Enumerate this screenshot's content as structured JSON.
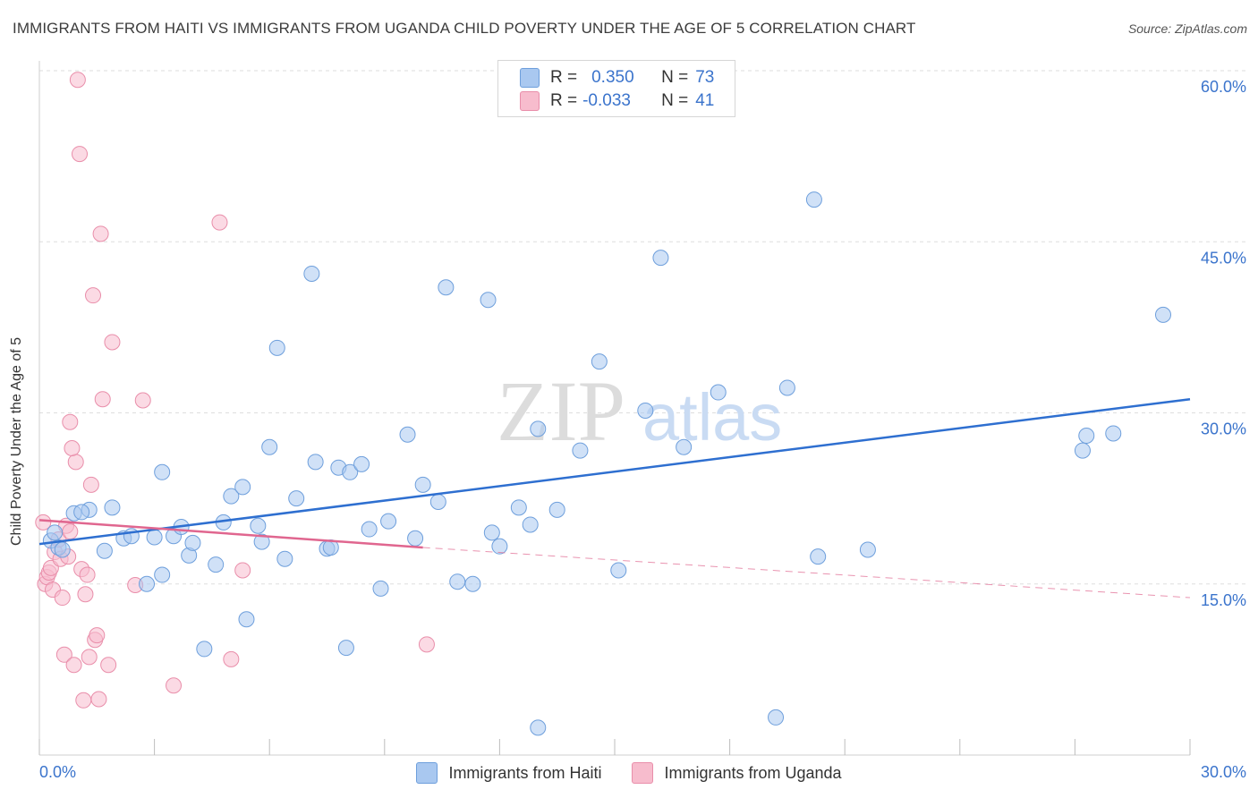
{
  "header": {
    "title": "IMMIGRANTS FROM HAITI VS IMMIGRANTS FROM UGANDA CHILD POVERTY UNDER THE AGE OF 5 CORRELATION CHART",
    "source": "Source: ZipAtlas.com"
  },
  "watermark": {
    "zip": "ZIP",
    "atlas": "atlas"
  },
  "legend": {
    "rows": [
      {
        "r_label": "R =",
        "r_value": "0.350",
        "n_label": "N =",
        "n_value": "73",
        "color": "#a9c8f0"
      },
      {
        "r_label": "R =",
        "r_value": "-0.033",
        "n_label": "N =",
        "n_value": "41",
        "color": "#f7bccd"
      }
    ]
  },
  "bottom_legend": {
    "haiti": "Immigrants from Haiti",
    "uganda": "Immigrants from Uganda"
  },
  "colors": {
    "haiti_fill": "#a9c8f0",
    "haiti_stroke": "#6e9fdc",
    "haiti_line": "#2e6fd0",
    "uganda_fill": "#f7bccd",
    "uganda_stroke": "#e98eaa",
    "uganda_line": "#e0668f",
    "axis_text": "#3b74cc"
  },
  "chart_data": {
    "type": "scatter",
    "title": "IMMIGRANTS FROM HAITI VS IMMIGRANTS FROM UGANDA CHILD POVERTY UNDER THE AGE OF 5 CORRELATION CHART",
    "xlabel": "",
    "ylabel": "Child Poverty Under the Age of 5",
    "xlim": [
      0,
      30
    ],
    "ylim": [
      0,
      60
    ],
    "x_tick_labels": [
      "0.0%",
      "30.0%"
    ],
    "y_ticks": [
      15,
      30,
      45,
      60
    ],
    "y_tick_labels": [
      "15.0%",
      "30.0%",
      "45.0%",
      "60.0%"
    ],
    "grid": true,
    "legend_position": "top-center",
    "series": [
      {
        "name": "Immigrants from Haiti",
        "R": 0.35,
        "N": 73,
        "trend": {
          "x": [
            0,
            30
          ],
          "y": [
            18.5,
            31.2
          ]
        },
        "points": [
          [
            0.3,
            18.8
          ],
          [
            0.4,
            19.5
          ],
          [
            0.5,
            18.2
          ],
          [
            0.6,
            18.0
          ],
          [
            0.9,
            21.2
          ],
          [
            1.3,
            21.5
          ],
          [
            1.1,
            21.3
          ],
          [
            1.9,
            21.7
          ],
          [
            1.7,
            17.9
          ],
          [
            2.2,
            19.0
          ],
          [
            2.4,
            19.2
          ],
          [
            2.8,
            15.0
          ],
          [
            3.0,
            19.1
          ],
          [
            3.2,
            15.8
          ],
          [
            3.2,
            24.8
          ],
          [
            3.5,
            19.2
          ],
          [
            3.7,
            20.0
          ],
          [
            3.9,
            17.5
          ],
          [
            4.0,
            18.6
          ],
          [
            4.3,
            9.3
          ],
          [
            4.6,
            16.7
          ],
          [
            4.8,
            20.4
          ],
          [
            5.0,
            22.7
          ],
          [
            5.3,
            23.5
          ],
          [
            5.4,
            11.9
          ],
          [
            5.7,
            20.1
          ],
          [
            5.8,
            18.7
          ],
          [
            6.0,
            27.0
          ],
          [
            6.2,
            35.7
          ],
          [
            6.4,
            17.2
          ],
          [
            6.7,
            22.5
          ],
          [
            7.1,
            42.2
          ],
          [
            7.2,
            25.7
          ],
          [
            7.5,
            18.1
          ],
          [
            7.6,
            18.2
          ],
          [
            7.8,
            25.2
          ],
          [
            8.0,
            9.4
          ],
          [
            8.1,
            24.8
          ],
          [
            8.4,
            25.5
          ],
          [
            8.6,
            19.8
          ],
          [
            8.9,
            14.6
          ],
          [
            9.1,
            20.5
          ],
          [
            9.6,
            28.1
          ],
          [
            9.8,
            19.0
          ],
          [
            10.0,
            23.7
          ],
          [
            10.4,
            22.2
          ],
          [
            10.6,
            41.0
          ],
          [
            10.9,
            15.2
          ],
          [
            11.3,
            15.0
          ],
          [
            11.7,
            39.9
          ],
          [
            11.8,
            19.5
          ],
          [
            12.0,
            18.3
          ],
          [
            12.5,
            21.7
          ],
          [
            12.8,
            20.2
          ],
          [
            13.0,
            2.4
          ],
          [
            13.0,
            28.6
          ],
          [
            13.5,
            21.5
          ],
          [
            14.1,
            26.7
          ],
          [
            14.6,
            34.5
          ],
          [
            15.1,
            16.2
          ],
          [
            15.8,
            30.2
          ],
          [
            16.2,
            43.6
          ],
          [
            16.8,
            27.0
          ],
          [
            17.7,
            31.8
          ],
          [
            19.2,
            3.3
          ],
          [
            19.5,
            32.2
          ],
          [
            20.2,
            48.7
          ],
          [
            20.3,
            17.4
          ],
          [
            21.6,
            18.0
          ],
          [
            27.2,
            26.7
          ],
          [
            27.3,
            28.0
          ],
          [
            28.0,
            28.2
          ],
          [
            29.3,
            38.6
          ]
        ]
      },
      {
        "name": "Immigrants from Uganda",
        "R": -0.033,
        "N": 41,
        "trend": {
          "x": [
            0,
            10
          ],
          "y": [
            20.6,
            18.2
          ]
        },
        "trend_dashed": {
          "x": [
            10,
            30
          ],
          "y": [
            18.2,
            13.8
          ]
        },
        "points": [
          [
            0.1,
            20.4
          ],
          [
            0.15,
            15.0
          ],
          [
            0.2,
            15.6
          ],
          [
            0.25,
            16.0
          ],
          [
            0.3,
            16.4
          ],
          [
            0.35,
            14.5
          ],
          [
            0.4,
            17.8
          ],
          [
            0.5,
            18.9
          ],
          [
            0.6,
            13.8
          ],
          [
            0.7,
            20.1
          ],
          [
            0.8,
            19.6
          ],
          [
            0.55,
            17.2
          ],
          [
            0.65,
            8.8
          ],
          [
            0.75,
            17.4
          ],
          [
            0.8,
            29.2
          ],
          [
            0.9,
            7.9
          ],
          [
            0.95,
            25.7
          ],
          [
            1.0,
            59.2
          ],
          [
            1.05,
            52.7
          ],
          [
            1.1,
            16.3
          ],
          [
            1.15,
            4.8
          ],
          [
            1.2,
            14.1
          ],
          [
            1.3,
            8.6
          ],
          [
            1.35,
            23.7
          ],
          [
            1.4,
            40.3
          ],
          [
            1.45,
            10.1
          ],
          [
            1.5,
            10.5
          ],
          [
            1.55,
            4.9
          ],
          [
            1.6,
            45.7
          ],
          [
            1.65,
            31.2
          ],
          [
            1.8,
            7.9
          ],
          [
            1.9,
            36.2
          ],
          [
            2.5,
            14.9
          ],
          [
            2.7,
            31.1
          ],
          [
            3.5,
            6.1
          ],
          [
            4.7,
            46.7
          ],
          [
            5.0,
            8.4
          ],
          [
            5.3,
            16.2
          ],
          [
            10.1,
            9.7
          ],
          [
            0.85,
            26.9
          ],
          [
            1.25,
            15.8
          ]
        ]
      }
    ]
  }
}
